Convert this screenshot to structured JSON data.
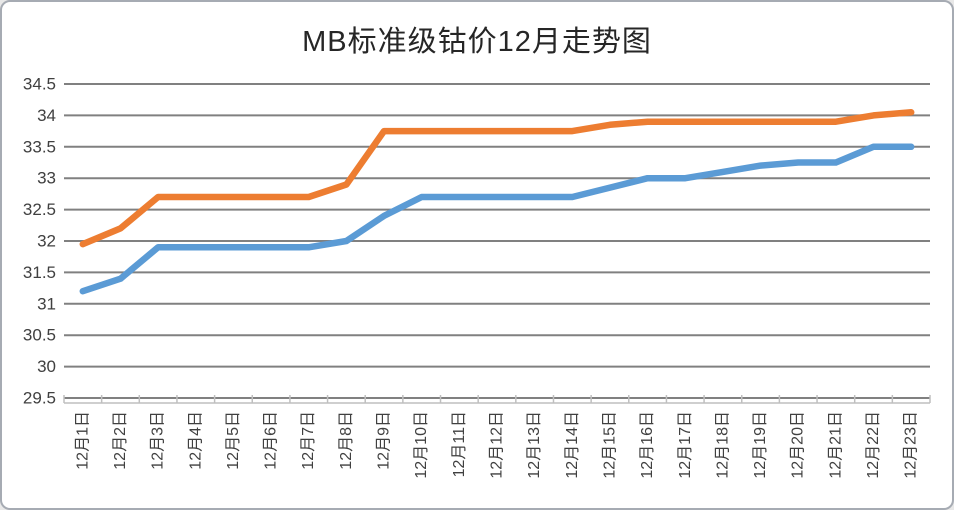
{
  "chart_data": {
    "type": "line",
    "title": "MB标准级钴价12月走势图",
    "categories": [
      "12月1日",
      "12月2日",
      "12月3日",
      "12月4日",
      "12月5日",
      "12月6日",
      "12月7日",
      "12月8日",
      "12月9日",
      "12月10日",
      "12月11日",
      "12月12日",
      "12月13日",
      "12月14日",
      "12月15日",
      "12月16日",
      "12月17日",
      "12月18日",
      "12月19日",
      "12月20日",
      "12月21日",
      "12月22日",
      "12月23日"
    ],
    "series": [
      {
        "name": "blue-line",
        "color": "#5B9BD5",
        "values": [
          31.2,
          31.4,
          31.9,
          31.9,
          31.9,
          31.9,
          31.9,
          32.0,
          32.4,
          32.7,
          32.7,
          32.7,
          32.7,
          32.7,
          32.85,
          33.0,
          33.0,
          33.1,
          33.2,
          33.25,
          33.25,
          33.5,
          33.5
        ]
      },
      {
        "name": "orange-line",
        "color": "#ED7D31",
        "values": [
          31.95,
          32.2,
          32.7,
          32.7,
          32.7,
          32.7,
          32.7,
          32.9,
          33.75,
          33.75,
          33.75,
          33.75,
          33.75,
          33.75,
          33.85,
          33.9,
          33.9,
          33.9,
          33.9,
          33.9,
          33.9,
          34.0,
          34.05
        ]
      }
    ],
    "xlabel": "",
    "ylabel": "",
    "ylim": [
      29.5,
      34.5
    ],
    "ystep": 0.5,
    "grid": true,
    "legend_position": "none",
    "colors": {
      "gridline": "#808080",
      "axis_line": "#BFBFBF",
      "tick_mark": "#BFBFBF",
      "axis_label": "#404040",
      "title": "#262626",
      "background": "#FFFFFF",
      "frame_border": "#A6ABB3"
    }
  }
}
